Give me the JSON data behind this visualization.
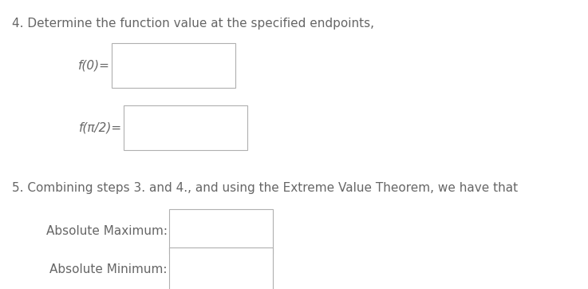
{
  "background_color": "#ffffff",
  "text_color": "#666666",
  "line1": "4. Determine the function value at the specified endpoints,",
  "label_f0": "f(0)=",
  "label_fpi2": "f(π/2)=",
  "line2": "5. Combining steps 3. and 4., and using the Extreme Value Theorem, we have that",
  "label_abs_max": "Absolute Maximum:",
  "label_abs_min": "Absolute Minimum:",
  "font_size_main": 11.0,
  "font_size_label": 11.0,
  "box_edge_color": "#b0b0b0",
  "box_face_color": "#ffffff",
  "fig_width": 7.37,
  "fig_height": 3.62,
  "dpi": 100
}
